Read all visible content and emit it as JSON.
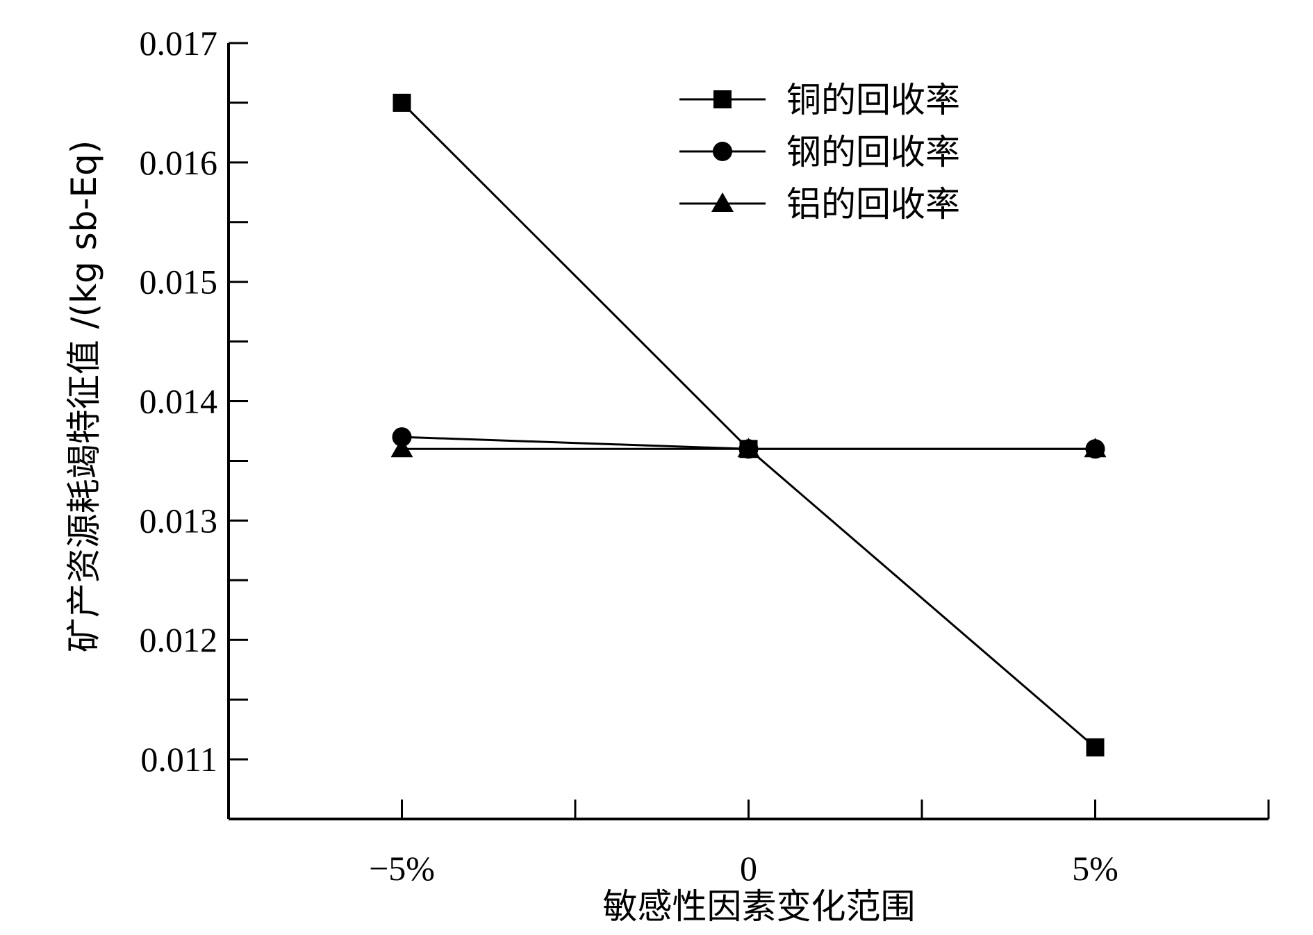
{
  "chart_data": {
    "type": "line",
    "title": "",
    "xlabel": "敏感性因素变化范围",
    "ylabel": "矿产资源耗竭特征值 /(kg sb-Eq)",
    "categories": [
      "−5%",
      "0",
      "5%"
    ],
    "x": [
      -5,
      0,
      5
    ],
    "xlim": [
      -7.5,
      7.5
    ],
    "ylim": [
      0.0105,
      0.017
    ],
    "yticks": [
      "0.011",
      "0.012",
      "0.013",
      "0.014",
      "0.015",
      "0.016",
      "0.017"
    ],
    "grid": false,
    "legend_position": "top-right",
    "series": [
      {
        "name": "铜的回收率",
        "marker": "square",
        "values": [
          0.0165,
          0.0136,
          0.0111
        ]
      },
      {
        "name": "钢的回收率",
        "marker": "circle",
        "values": [
          0.0137,
          0.0136,
          0.0136
        ]
      },
      {
        "name": "铝的回收率",
        "marker": "triangle",
        "values": [
          0.0136,
          0.0136,
          0.0136
        ]
      }
    ],
    "colors": {
      "line": "#000000",
      "marker": "#000000"
    }
  }
}
